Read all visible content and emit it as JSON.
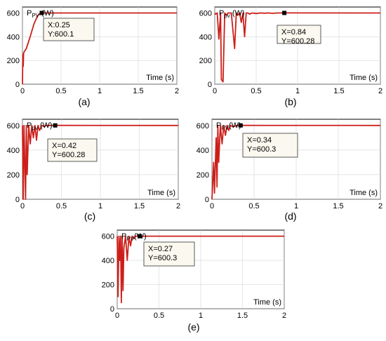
{
  "figure": {
    "panels": [
      {
        "caption": "(a)",
        "ylabel_main": "P",
        "ylabel_sub": "PV",
        "ylabel_unit": " (W)",
        "xlabel": "Time (s)",
        "x_ticks": [
          "0",
          "0.5",
          "1",
          "1.5",
          "2"
        ],
        "y_ticks": [
          "0",
          "200",
          "400",
          "600"
        ],
        "datatip": [
          "X:0.25",
          "Y:600.1"
        ]
      },
      {
        "caption": "(b)",
        "ylabel_main": "P",
        "ylabel_sub": "pv",
        "ylabel_unit": " (W)",
        "xlabel": "Time (s)",
        "x_ticks": [
          "0",
          "0.5",
          "1",
          "1.5",
          "2"
        ],
        "y_ticks": [
          "0",
          "200",
          "400",
          "600"
        ],
        "datatip": [
          "X=0.84",
          "Y=600.28"
        ]
      },
      {
        "caption": "(c)",
        "ylabel_main": "P",
        "ylabel_sub": "pv",
        "ylabel_unit": " (W)",
        "xlabel": "Time (s)",
        "x_ticks": [
          "0",
          "0.5",
          "1",
          "1.5",
          "2"
        ],
        "y_ticks": [
          "0",
          "200",
          "400",
          "600"
        ],
        "datatip": [
          "X=0.42",
          "Y=600.28"
        ]
      },
      {
        "caption": "(d)",
        "ylabel_main": "P",
        "ylabel_sub": "PV",
        "ylabel_unit": "(W)",
        "xlabel": "Time (s)",
        "x_ticks": [
          "0",
          "0.5",
          "1",
          "1.5",
          "2"
        ],
        "y_ticks": [
          "0",
          "200",
          "400",
          "600"
        ],
        "datatip": [
          "X=0.34",
          "Y=600.3"
        ]
      },
      {
        "caption": "(e)",
        "ylabel_main": "P",
        "ylabel_sub": "PV",
        "ylabel_unit": "(W)",
        "xlabel": "Time (s)",
        "x_ticks": [
          "0",
          "0.5",
          "1",
          "1.5",
          "2"
        ],
        "y_ticks": [
          "0",
          "200",
          "400",
          "600"
        ],
        "datatip": [
          "X=0.27",
          "Y=600.3"
        ]
      }
    ]
  },
  "chart_data": [
    {
      "type": "line",
      "panel": "(a)",
      "xlabel": "Time (s)",
      "ylabel": "PPV (W)",
      "xlim": [
        0,
        2
      ],
      "ylim": [
        0,
        650
      ],
      "series_color": "#cc1f1a",
      "series": [
        {
          "x": [
            0,
            0.005,
            0.01,
            0.015,
            0.02,
            0.05,
            0.1,
            0.15,
            0.2,
            0.25,
            0.3,
            2
          ],
          "y": [
            0,
            250,
            150,
            260,
            270,
            300,
            400,
            510,
            580,
            600.1,
            600,
            600
          ]
        }
      ],
      "datatip": {
        "x": 0.25,
        "y": 600.1
      }
    },
    {
      "type": "line",
      "panel": "(b)",
      "xlabel": "Time (s)",
      "ylabel": "Ppv (W)",
      "xlim": [
        0,
        2
      ],
      "ylim": [
        0,
        650
      ],
      "series_color": "#cc1f1a",
      "series": [
        {
          "x": [
            0,
            0.01,
            0.03,
            0.05,
            0.07,
            0.08,
            0.1,
            0.12,
            0.14,
            0.16,
            0.2,
            0.24,
            0.26,
            0.28,
            0.3,
            0.32,
            0.34,
            0.36,
            0.38,
            0.4,
            0.42,
            0.45,
            0.5,
            0.55,
            0.6,
            0.65,
            0.7,
            0.75,
            0.84,
            2
          ],
          "y": [
            600,
            590,
            600,
            380,
            600,
            40,
            20,
            600,
            580,
            600,
            600,
            300,
            600,
            580,
            600,
            520,
            600,
            400,
            600,
            600,
            590,
            600,
            595,
            600,
            598,
            600,
            597,
            600,
            600.28,
            600
          ]
        }
      ],
      "datatip": {
        "x": 0.84,
        "y": 600.28
      }
    },
    {
      "type": "line",
      "panel": "(c)",
      "xlabel": "Time (s)",
      "ylabel": "Ppv (W)",
      "xlim": [
        0,
        2
      ],
      "ylim": [
        0,
        650
      ],
      "series_color": "#cc1f1a",
      "series": [
        {
          "x": [
            0,
            0.01,
            0.02,
            0.03,
            0.04,
            0.05,
            0.06,
            0.08,
            0.1,
            0.12,
            0.14,
            0.16,
            0.18,
            0.2,
            0.22,
            0.25,
            0.28,
            0.3,
            0.35,
            0.42,
            2
          ],
          "y": [
            600,
            0,
            600,
            300,
            0,
            600,
            200,
            600,
            450,
            600,
            500,
            600,
            480,
            600,
            560,
            600,
            590,
            600,
            600,
            600.28,
            600
          ]
        }
      ],
      "datatip": {
        "x": 0.42,
        "y": 600.28
      }
    },
    {
      "type": "line",
      "panel": "(d)",
      "xlabel": "Time (s)",
      "ylabel": "PPV (W)",
      "xlim": [
        0,
        2
      ],
      "ylim": [
        0,
        650
      ],
      "series_color": "#cc1f1a",
      "series": [
        {
          "x": [
            0,
            0.02,
            0.03,
            0.05,
            0.06,
            0.07,
            0.08,
            0.1,
            0.12,
            0.14,
            0.16,
            0.18,
            0.2,
            0.22,
            0.25,
            0.3,
            0.34,
            2
          ],
          "y": [
            0,
            300,
            50,
            500,
            100,
            600,
            300,
            600,
            450,
            600,
            520,
            600,
            560,
            600,
            590,
            600,
            600.3,
            600
          ]
        }
      ],
      "datatip": {
        "x": 0.34,
        "y": 600.3
      }
    },
    {
      "type": "line",
      "panel": "(e)",
      "xlabel": "Time (s)",
      "ylabel": "PPV (W)",
      "xlim": [
        0,
        2
      ],
      "ylim": [
        0,
        650
      ],
      "series_color": "#cc1f1a",
      "series": [
        {
          "x": [
            0,
            0.01,
            0.02,
            0.03,
            0.04,
            0.05,
            0.06,
            0.07,
            0.08,
            0.1,
            0.12,
            0.14,
            0.16,
            0.18,
            0.2,
            0.22,
            0.27,
            2
          ],
          "y": [
            600,
            100,
            600,
            400,
            600,
            50,
            600,
            150,
            500,
            600,
            400,
            600,
            520,
            600,
            580,
            600,
            600.3,
            600
          ]
        }
      ],
      "datatip": {
        "x": 0.27,
        "y": 600.3
      }
    }
  ]
}
